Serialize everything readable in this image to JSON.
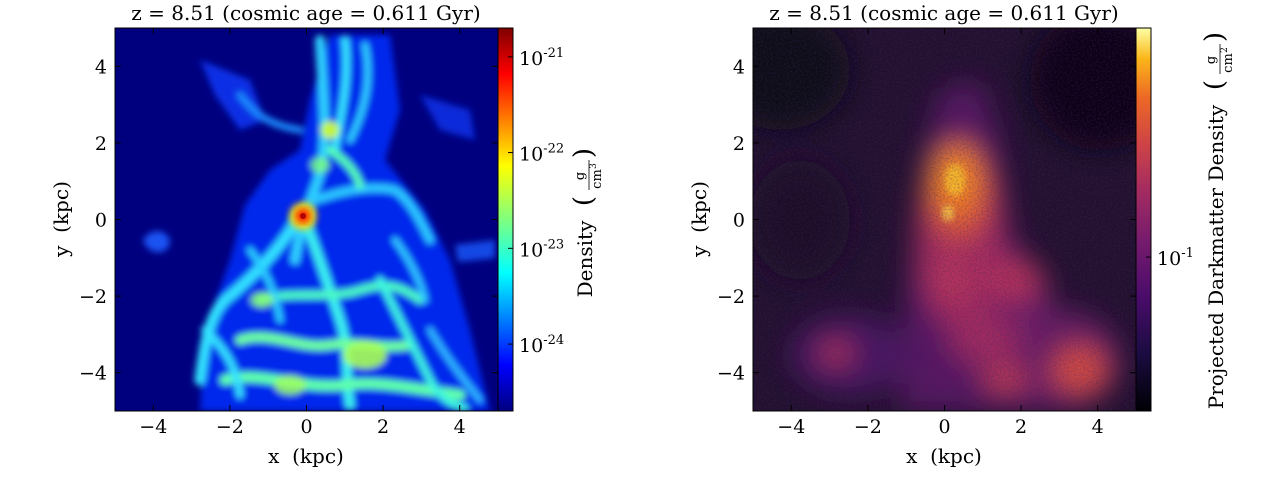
{
  "chart_data": [
    {
      "type": "heatmap",
      "title": "z = 8.51 (cosmic age = 0.611 Gyr)",
      "xlabel": "x  (kpc)",
      "ylabel": "y  (kpc)",
      "xlim": [
        -5,
        5
      ],
      "ylim": [
        -5,
        5
      ],
      "xticks": [
        -4,
        -2,
        0,
        2,
        4
      ],
      "yticks": [
        -4,
        -2,
        0,
        2,
        4
      ],
      "xtick_labels": [
        "−4",
        "−2",
        "0",
        "2",
        "4"
      ],
      "ytick_labels": [
        "−4",
        "−2",
        "0",
        "2",
        "4"
      ],
      "colormap": "jet",
      "colorbar": {
        "label": "Density",
        "unit_numerator": "g",
        "unit_denominator": "cm",
        "unit_exponent": "3",
        "scale": "log",
        "range": [
          2e-25,
          2e-21
        ],
        "tick_values": [
          1e-21,
          1e-22,
          1e-23,
          1e-24
        ],
        "tick_mantissas": [
          "10",
          "10",
          "10",
          "10"
        ],
        "tick_exponents": [
          "-21",
          "-22",
          "-23",
          "-24"
        ]
      },
      "background_color": "#00007f",
      "features": [
        {
          "x": -0.1,
          "y": 0.1,
          "value": 1.5e-21
        },
        {
          "x": 0.6,
          "y": 3.5,
          "value": 5e-23
        },
        {
          "x": 0.9,
          "y": 2.2,
          "value": 8e-23
        },
        {
          "x": 0.2,
          "y": -1.0,
          "value": 2e-23
        },
        {
          "x": -1.0,
          "y": -1.6,
          "value": 1.5e-23
        },
        {
          "x": 1.8,
          "y": -3.5,
          "value": 6e-23
        },
        {
          "x": -0.5,
          "y": -3.8,
          "value": 2.5e-23
        },
        {
          "x": 3.0,
          "y": -3.0,
          "value": 1.5e-23
        },
        {
          "x": -3.8,
          "y": -0.5,
          "value": 3e-24
        }
      ]
    },
    {
      "type": "heatmap",
      "title": "z = 8.51 (cosmic age = 0.611 Gyr)",
      "xlabel": "x  (kpc)",
      "ylabel": "y  (kpc)",
      "xlim": [
        -5,
        5
      ],
      "ylim": [
        -5,
        5
      ],
      "xticks": [
        -4,
        -2,
        0,
        2,
        4
      ],
      "yticks": [
        -4,
        -2,
        0,
        2,
        4
      ],
      "xtick_labels": [
        "−4",
        "−2",
        "0",
        "2",
        "4"
      ],
      "ytick_labels": [
        "−4",
        "−2",
        "0",
        "2",
        "4"
      ],
      "colormap": "inferno",
      "colorbar": {
        "label": "Projected Darkmatter Density",
        "unit_numerator": "g",
        "unit_denominator": "cm",
        "unit_exponent": "2",
        "scale": "log",
        "range": [
          0.03,
          0.6
        ],
        "tick_values": [
          0.1
        ],
        "tick_mantissas": [
          "10"
        ],
        "tick_exponents": [
          "-1"
        ]
      },
      "background_color": "#1e0e2a",
      "features": [
        {
          "x": 0.3,
          "y": 1.0,
          "value": 0.45
        },
        {
          "x": 0.0,
          "y": -1.0,
          "value": 0.25
        },
        {
          "x": 1.0,
          "y": -2.0,
          "value": 0.18
        },
        {
          "x": 3.6,
          "y": -3.8,
          "value": 0.2
        },
        {
          "x": -2.8,
          "y": -3.5,
          "value": 0.12
        },
        {
          "x": 1.2,
          "y": -4.2,
          "value": 0.14
        }
      ]
    }
  ]
}
